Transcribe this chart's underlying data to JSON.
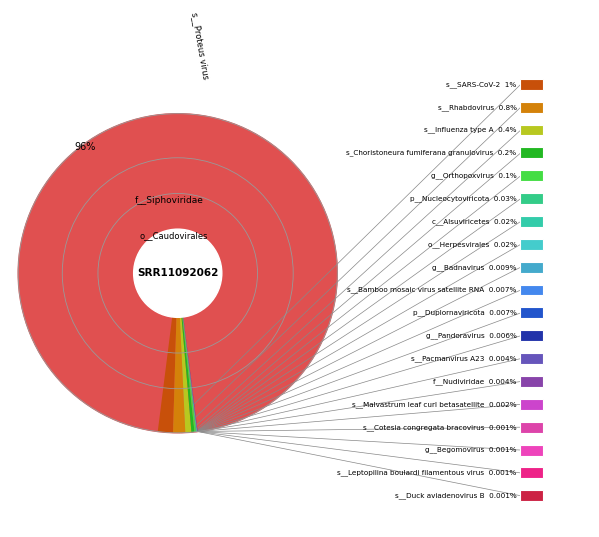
{
  "center_label": "SRR11092062",
  "background_color": "#ffffff",
  "donut_color": "#e05050",
  "legend_items": [
    {
      "label": "s__SARS-CoV-2",
      "pct": "1%",
      "color": "#c8500a"
    },
    {
      "label": "s__Rhabdovirus",
      "pct": "0.8%",
      "color": "#d4820a"
    },
    {
      "label": "s__Influenza type A",
      "pct": "0.4%",
      "color": "#b8c820"
    },
    {
      "label": "s_Choristoneura fumiferana granulovirus",
      "pct": "0.2%",
      "color": "#22b822"
    },
    {
      "label": "g__Orthopoxvirus",
      "pct": "0.1%",
      "color": "#44dd44"
    },
    {
      "label": "p__Nucleocytoviricota",
      "pct": "0.03%",
      "color": "#33cc88"
    },
    {
      "label": "c__Alsuviricetes",
      "pct": "0.02%",
      "color": "#33ccaa"
    },
    {
      "label": "o__Herpesvirales",
      "pct": "0.02%",
      "color": "#44cccc"
    },
    {
      "label": "g__Badnavirus",
      "pct": "0.009%",
      "color": "#44aacc"
    },
    {
      "label": "s__Bamboo mosaic virus satellite RNA",
      "pct": "0.007%",
      "color": "#4488ee"
    },
    {
      "label": "p__Duplornaviricota",
      "pct": "0.007%",
      "color": "#2255cc"
    },
    {
      "label": "g__Pandoravirus",
      "pct": "0.006%",
      "color": "#2233aa"
    },
    {
      "label": "s__Pacmanvirus A23",
      "pct": "0.004%",
      "color": "#6655bb"
    },
    {
      "label": "f__Nudiviridae",
      "pct": "0.004%",
      "color": "#8844aa"
    },
    {
      "label": "s__Malvastrum leaf curl betasatellite",
      "pct": "0.002%",
      "color": "#cc44cc"
    },
    {
      "label": "s__Cotesia congregata bracovirus",
      "pct": "0.001%",
      "color": "#dd44aa"
    },
    {
      "label": "g__Begomovirus",
      "pct": "0.001%",
      "color": "#ee44bb"
    },
    {
      "label": "s__Leptopilina boulardi filamentous virus",
      "pct": "0.001%",
      "color": "#ee2288"
    },
    {
      "label": "s__Duck aviadenovirus B",
      "pct": "0.001%",
      "color": "#cc2244"
    }
  ],
  "wedge_colors": [
    "#c8500a",
    "#d4820a",
    "#b8c820",
    "#22b822",
    "#44dd44",
    "#33cc88",
    "#33ccaa",
    "#44cccc",
    "#44aacc",
    "#4488ee",
    "#2255cc",
    "#2233aa",
    "#6655bb",
    "#8844aa",
    "#cc44cc",
    "#dd44aa",
    "#ee44bb",
    "#ee2288",
    "#cc2244"
  ],
  "wedge_pcts": [
    1.0,
    0.8,
    0.4,
    0.2,
    0.1,
    0.03,
    0.02,
    0.02,
    0.009,
    0.007,
    0.007,
    0.006,
    0.004,
    0.004,
    0.002,
    0.001,
    0.001,
    0.001,
    0.001
  ],
  "main_pct": 96.0,
  "r_hole": 0.105,
  "r1": 0.19,
  "r2": 0.275,
  "r3": 0.38
}
